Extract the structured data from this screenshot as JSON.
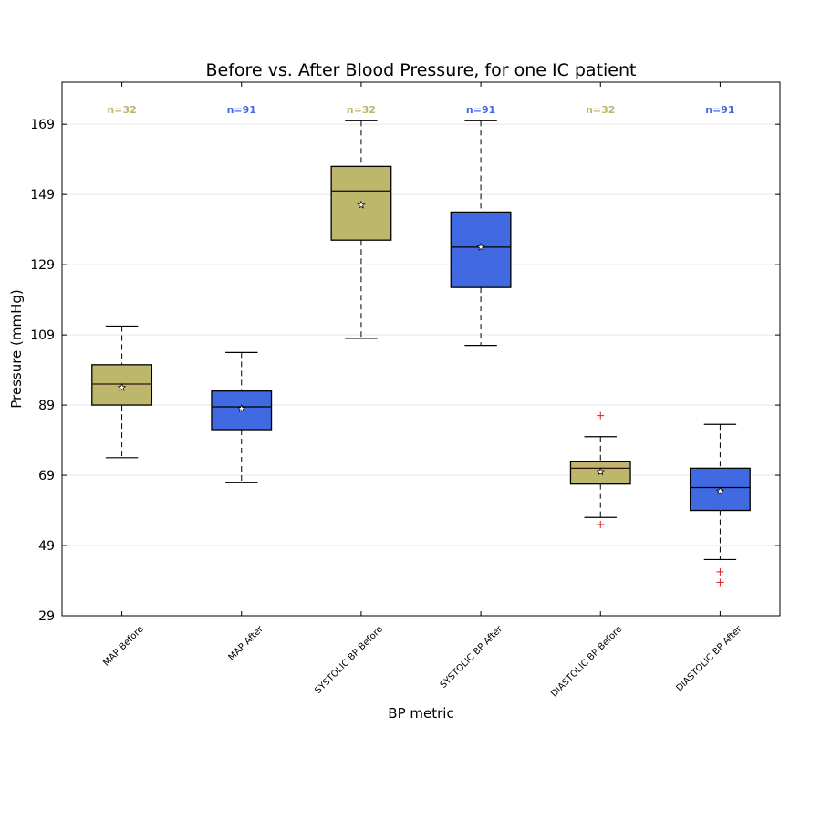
{
  "chart_data": {
    "type": "box",
    "title": "Before vs. After Blood Pressure, for one IC patient",
    "xlabel": "BP metric",
    "ylabel": "Pressure (mmHg)",
    "ylim": [
      29,
      181
    ],
    "yticks": [
      29,
      49,
      69,
      89,
      109,
      129,
      149,
      169
    ],
    "yticks_labels": [
      "29",
      "49",
      "69",
      "89",
      "109",
      "129",
      "149",
      "169"
    ],
    "grid": "horizontal",
    "colors": {
      "before": "#BDB76B",
      "after": "#4169E1",
      "outlier": "#e41a1c",
      "grid": "#e6e6e6"
    },
    "categories": [
      "MAP Before",
      "MAP After",
      "SYSTOLIC BP Before",
      "SYSTOLIC BP After",
      "DIASTOLIC BP Before",
      "DIASTOLIC BP After"
    ],
    "boxes": [
      {
        "label": "MAP Before",
        "count_label": "n=32",
        "group": "before",
        "whisker_low": 74,
        "q1": 89,
        "median": 95,
        "q3": 100.5,
        "whisker_high": 111.5,
        "mean": 94,
        "outliers": []
      },
      {
        "label": "MAP After",
        "count_label": "n=91",
        "group": "after",
        "whisker_low": 67,
        "q1": 82,
        "median": 88.5,
        "q3": 93,
        "whisker_high": 104,
        "mean": 88,
        "outliers": []
      },
      {
        "label": "SYSTOLIC BP Before",
        "count_label": "n=32",
        "group": "before",
        "whisker_low": 108,
        "q1": 136,
        "median": 150,
        "q3": 157,
        "whisker_high": 170,
        "mean": 146,
        "outliers": []
      },
      {
        "label": "SYSTOLIC BP After",
        "count_label": "n=91",
        "group": "after",
        "whisker_low": 106,
        "q1": 122.5,
        "median": 134,
        "q3": 144,
        "whisker_high": 170,
        "mean": 134,
        "outliers": []
      },
      {
        "label": "DIASTOLIC BP Before",
        "count_label": "n=32",
        "group": "before",
        "whisker_low": 57,
        "q1": 66.5,
        "median": 71,
        "q3": 73,
        "whisker_high": 80,
        "mean": 70,
        "outliers": [
          55,
          86
        ]
      },
      {
        "label": "DIASTOLIC BP After",
        "count_label": "n=91",
        "group": "after",
        "whisker_low": 45,
        "q1": 59,
        "median": 65.5,
        "q3": 71,
        "whisker_high": 83.5,
        "mean": 64.5,
        "outliers": [
          41.5,
          38.5
        ]
      }
    ]
  }
}
